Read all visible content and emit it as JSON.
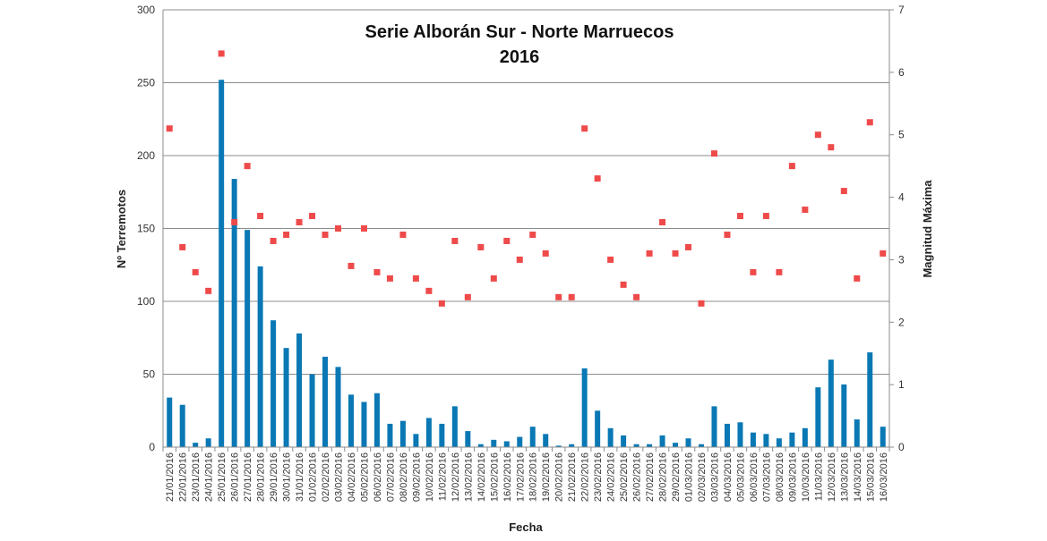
{
  "chart_data": {
    "type": "bar",
    "title": "Serie Alborán Sur - Norte Marruecos",
    "subtitle": "2016",
    "xlabel": "Fecha",
    "ylabel": "Nº Terremotos",
    "y2label": "Magnitud Máxima",
    "ylim": [
      0,
      300
    ],
    "y2lim": [
      0,
      7
    ],
    "yticks": [
      0,
      50,
      100,
      150,
      200,
      250,
      300
    ],
    "y2ticks": [
      0,
      1,
      2,
      3,
      4,
      5,
      6,
      7
    ],
    "grid": true,
    "legend": "none",
    "categories": [
      "21/01/2016",
      "22/01/2016",
      "23/01/2016",
      "24/01/2016",
      "25/01/2016",
      "26/01/2016",
      "27/01/2016",
      "28/01/2016",
      "29/01/2016",
      "30/01/2016",
      "31/01/2016",
      "01/02/2016",
      "02/02/2016",
      "03/02/2016",
      "04/02/2016",
      "05/02/2016",
      "06/02/2016",
      "07/02/2016",
      "08/02/2016",
      "09/02/2016",
      "10/02/2016",
      "11/02/2016",
      "12/02/2016",
      "13/02/2016",
      "14/02/2016",
      "15/02/2016",
      "16/02/2016",
      "17/02/2016",
      "18/02/2016",
      "19/02/2016",
      "20/02/2016",
      "21/02/2016",
      "22/02/2016",
      "23/02/2016",
      "24/02/2016",
      "25/02/2016",
      "26/02/2016",
      "27/02/2016",
      "28/02/2016",
      "29/02/2016",
      "01/03/2016",
      "02/03/2016",
      "03/03/2016",
      "04/03/2016",
      "05/03/2016",
      "06/03/2016",
      "07/03/2016",
      "08/03/2016",
      "09/03/2016",
      "10/03/2016",
      "11/03/2016",
      "12/03/2016",
      "13/03/2016",
      "14/03/2016",
      "15/03/2016",
      "16/03/2016"
    ],
    "series": [
      {
        "type": "bar",
        "axis": "left",
        "color": "#0a78b4",
        "values": [
          34,
          29,
          3,
          6,
          252,
          184,
          149,
          124,
          87,
          68,
          78,
          50,
          62,
          55,
          36,
          31,
          37,
          16,
          18,
          9,
          20,
          16,
          28,
          11,
          2,
          5,
          4,
          7,
          14,
          9,
          1,
          2,
          54,
          25,
          13,
          8,
          2,
          2,
          8,
          3,
          6,
          2,
          28,
          16,
          17,
          10,
          9,
          6,
          10,
          13,
          41,
          60,
          43,
          19,
          65,
          14
        ]
      },
      {
        "type": "scatter",
        "axis": "right",
        "color": "#ef4a4a",
        "values": [
          5.1,
          3.2,
          2.8,
          2.5,
          6.3,
          3.6,
          4.5,
          3.7,
          3.3,
          3.4,
          3.6,
          3.7,
          3.4,
          3.5,
          2.9,
          3.5,
          2.8,
          2.7,
          3.4,
          2.7,
          2.5,
          2.3,
          3.3,
          2.4,
          3.2,
          2.7,
          3.3,
          3.0,
          3.4,
          3.1,
          2.4,
          2.4,
          5.1,
          4.3,
          3.0,
          2.6,
          2.4,
          3.1,
          3.6,
          3.1,
          3.2,
          2.3,
          4.7,
          3.4,
          3.7,
          2.8,
          3.7,
          2.8,
          4.5,
          3.8,
          5.0,
          4.8,
          4.1,
          2.7,
          5.2,
          3.1
        ]
      }
    ]
  }
}
